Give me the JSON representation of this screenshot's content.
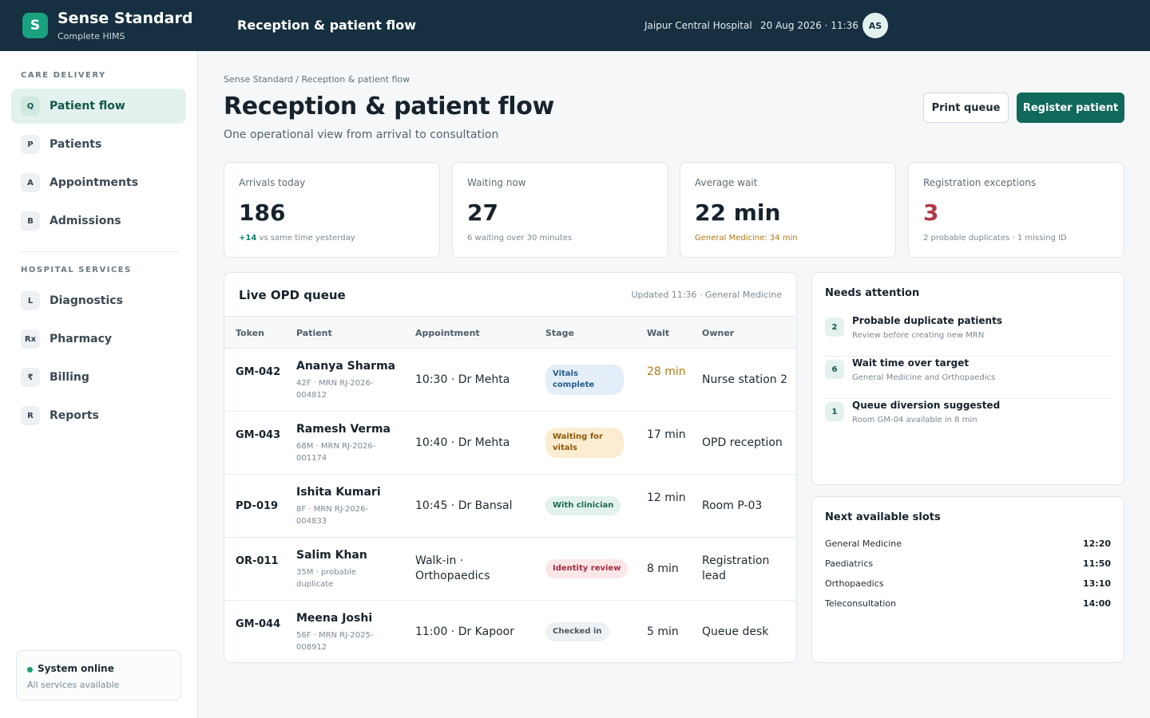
{
  "app": {
    "logo_letter": "S",
    "brand": "Sense Standard",
    "brand_sub": "Complete HIMS",
    "page_title": "Reception & patient flow",
    "hospital": "Jaipur Central Hospital",
    "datetime": "20 Aug 2026 · 11:36",
    "user_initials": "AS"
  },
  "sidebar": {
    "section_care": "CARE DELIVERY",
    "section_hospital": "HOSPITAL SERVICES",
    "care_items": [
      {
        "icon": "Q",
        "label": "Patient flow",
        "active": true
      },
      {
        "icon": "P",
        "label": "Patients"
      },
      {
        "icon": "A",
        "label": "Appointments"
      },
      {
        "icon": "B",
        "label": "Admissions"
      }
    ],
    "hospital_items": [
      {
        "icon": "L",
        "label": "Diagnostics"
      },
      {
        "icon": "Rx",
        "label": "Pharmacy"
      },
      {
        "icon": "₹",
        "label": "Billing"
      },
      {
        "icon": "R",
        "label": "Reports"
      }
    ],
    "status_title": "System online",
    "status_sub": "All services available"
  },
  "main": {
    "breadcrumb": "Sense Standard / Reception & patient flow",
    "title": "Reception & patient flow",
    "subtitle": "One operational view from arrival to consultation",
    "print_button": "Print queue",
    "register_button": "Register patient"
  },
  "stats": [
    {
      "label": "Arrivals today",
      "value": "186",
      "note_highlight": "+14",
      "note": " vs same time yesterday"
    },
    {
      "label": "Waiting now",
      "value": "27",
      "note": "6 waiting over 30 minutes"
    },
    {
      "label": "Average wait",
      "value": "22 min",
      "note": "General Medicine: 34 min"
    },
    {
      "label": "Registration exceptions",
      "value": "3",
      "note": "2 probable duplicates · 1 missing ID"
    }
  ],
  "queue": {
    "title": "Live OPD queue",
    "updated": "Updated 11:36 · General Medicine",
    "headers": [
      "Token",
      "Patient",
      "Appointment",
      "Stage",
      "Wait",
      "Owner"
    ],
    "rows": [
      {
        "token": "GM-042",
        "name": "Ananya Sharma",
        "meta": "42F · MRN RJ-2026-004812",
        "appointment": "10:30 · Dr Mehta",
        "stage": "Vitals complete",
        "wait": "28 min",
        "owner": "Nurse station 2"
      },
      {
        "token": "GM-043",
        "name": "Ramesh Verma",
        "meta": "68M · MRN RJ-2026-001174",
        "appointment": "10:40 · Dr Mehta",
        "stage": "Waiting for vitals",
        "wait": "17 min",
        "owner": "OPD reception"
      },
      {
        "token": "PD-019",
        "name": "Ishita Kumari",
        "meta": "8F · MRN RJ-2026-004833",
        "appointment": "10:45 · Dr Bansal",
        "stage": "With clinician",
        "wait": "12 min",
        "owner": "Room P-03"
      },
      {
        "token": "OR-011",
        "name": "Salim Khan",
        "meta": "35M · probable duplicate",
        "appointment": "Walk-in · Orthopaedics",
        "stage": "Identity review",
        "wait": "8 min",
        "owner": "Registration lead"
      },
      {
        "token": "GM-044",
        "name": "Meena Joshi",
        "meta": "56F · MRN RJ-2025-008912",
        "appointment": "11:00 · Dr Kapoor",
        "stage": "Checked in",
        "wait": "5 min",
        "owner": "Queue desk"
      }
    ]
  },
  "attention": {
    "title": "Needs attention",
    "items": [
      {
        "count": "2",
        "title": "Probable duplicate patients",
        "sub": "Review before creating new MRN"
      },
      {
        "count": "6",
        "title": "Wait time over target",
        "sub": "General Medicine and Orthopaedics"
      },
      {
        "count": "1",
        "title": "Queue diversion suggested",
        "sub": "Room GM-04 available in 8 min"
      }
    ]
  },
  "slots": {
    "title": "Next available slots",
    "items": [
      {
        "name": "General Medicine",
        "time": "12:20"
      },
      {
        "name": "Paediatrics",
        "time": "11:50"
      },
      {
        "name": "Orthopaedics",
        "time": "13:10"
      },
      {
        "name": "Teleconsultation",
        "time": "14:00"
      }
    ]
  },
  "colors": {
    "topbar": "#163041",
    "brand_green": "#1aa17e",
    "primary_button": "#10695a",
    "warning": "#b07a12",
    "danger": "#b03a48"
  }
}
